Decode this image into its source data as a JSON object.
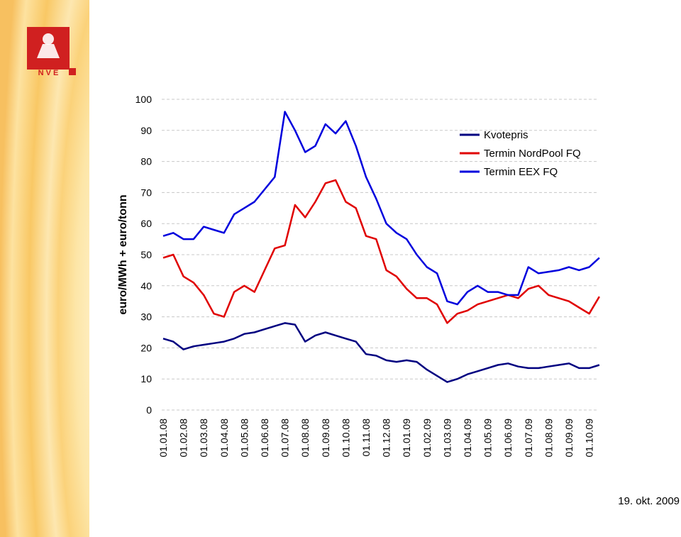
{
  "logo": "N V E",
  "footer": {
    "date": "19. okt. 2009"
  },
  "chart_data": {
    "type": "line",
    "y_label": "euro/MWh + euro/tonn",
    "categories": [
      "01.01.08",
      null,
      "01.02.08",
      null,
      "01.03.08",
      null,
      "01.04.08",
      null,
      "01.05.08",
      null,
      "01.06.08",
      null,
      "01.07.08",
      null,
      "01.08.08",
      null,
      "01.09.08",
      null,
      "01.10.08",
      null,
      "01.11.08",
      null,
      "01.12.08",
      null,
      "01.01.09",
      null,
      "01.02.09",
      null,
      "01.03.09",
      null,
      "01.04.09",
      null,
      "01.05.09",
      null,
      "01.06.09",
      null,
      "01.07.09",
      null,
      "01.08.09",
      null,
      "01.09.09",
      null,
      "01.10.09",
      null
    ],
    "series": [
      {
        "name": "Kvotepris",
        "color": "#000080",
        "values": [
          23,
          22,
          19.5,
          20.5,
          21,
          21.5,
          22,
          23,
          24.5,
          25,
          26,
          27,
          28,
          27.5,
          22,
          24,
          25,
          24,
          23,
          22,
          18,
          17.5,
          16,
          15.5,
          16,
          15.5,
          13,
          11,
          9,
          10,
          11.5,
          12.5,
          13.5,
          14.5,
          15,
          14,
          13.5,
          13.5,
          14,
          14.5,
          15,
          13.5,
          13.5,
          14.5
        ]
      },
      {
        "name": "Termin NordPool FQ",
        "color": "#e00000",
        "values": [
          49,
          50,
          43,
          41,
          37,
          31,
          30,
          38,
          40,
          38,
          45,
          52,
          53,
          66,
          62,
          67,
          73,
          74,
          67,
          65,
          56,
          55,
          45,
          43,
          39,
          36,
          36,
          34,
          28,
          31,
          32,
          34,
          35,
          36,
          37,
          36,
          39,
          40,
          37,
          36,
          35,
          33,
          31,
          36.5
        ]
      },
      {
        "name": "Termin EEX FQ",
        "color": "#0000dd",
        "values": [
          56,
          57,
          55,
          55,
          59,
          58,
          57,
          63,
          65,
          67,
          71,
          75,
          96,
          90,
          83,
          85,
          92,
          89,
          93,
          85,
          75,
          68,
          60,
          57,
          55,
          50,
          46,
          44,
          35,
          34,
          38,
          40,
          38,
          38,
          37,
          37,
          46,
          44,
          44.5,
          45,
          46,
          45,
          46,
          49
        ]
      }
    ],
    "ylim": [
      0,
      100
    ],
    "yticks": [
      0,
      10,
      20,
      30,
      40,
      50,
      60,
      70,
      80,
      90,
      100
    ],
    "grid": true,
    "legend": "upper right"
  }
}
